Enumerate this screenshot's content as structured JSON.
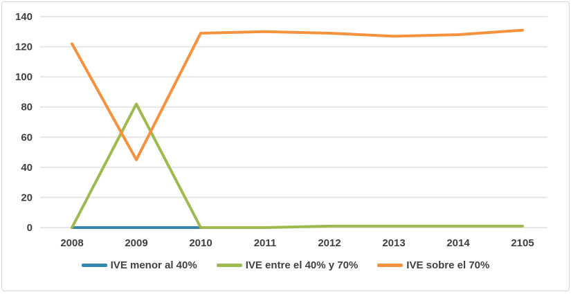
{
  "chart_data": {
    "type": "line",
    "title": "",
    "xlabel": "",
    "ylabel": "",
    "categories": [
      "2008",
      "2009",
      "2010",
      "2011",
      "2012",
      "2013",
      "2014",
      "2105"
    ],
    "series": [
      {
        "name": "IVE menor al 40%",
        "color": "#3588AD",
        "values": [
          0,
          0,
          0,
          null,
          null,
          null,
          null,
          null
        ]
      },
      {
        "name": "IVE entre el 40% y 70%",
        "color": "#9EBA4E",
        "values": [
          0,
          82,
          0,
          0,
          1,
          1,
          1,
          1
        ]
      },
      {
        "name": "IVE sobre el 70%",
        "color": "#F6913E",
        "values": [
          122,
          45,
          129,
          130,
          129,
          127,
          128,
          131
        ]
      }
    ],
    "yticks": [
      0,
      20,
      40,
      60,
      80,
      100,
      120,
      140
    ],
    "ylim": [
      0,
      140
    ],
    "grid": "horizontal",
    "legend_position": "bottom"
  },
  "style": {
    "grid_color": "#E6E6E6",
    "text_color": "#404040",
    "border_color": "#D6D6D6",
    "background": "#FFFFFF"
  }
}
